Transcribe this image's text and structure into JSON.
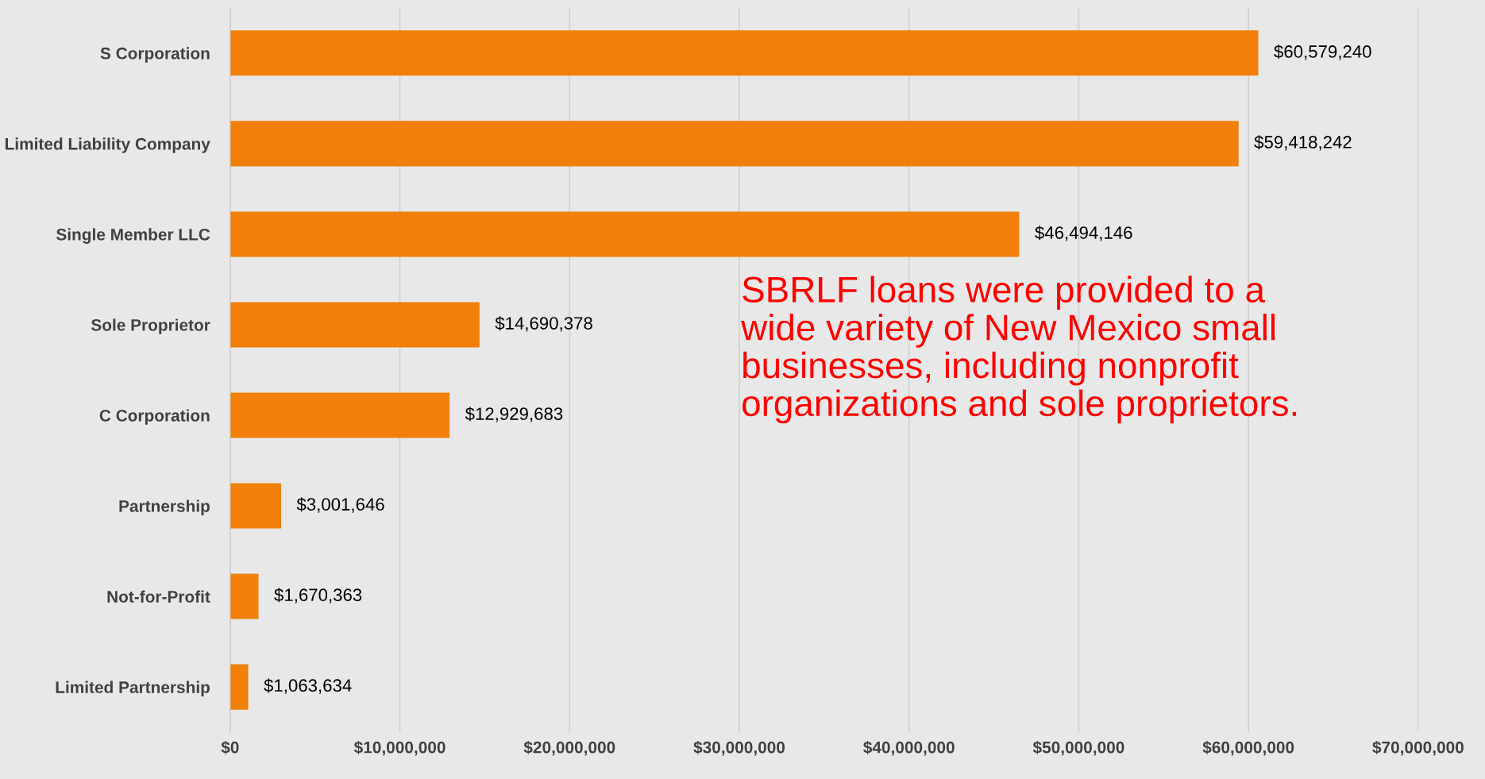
{
  "chart_data": {
    "type": "bar",
    "orientation": "horizontal",
    "categories": [
      "S Corporation",
      "Limited Liability Company",
      "Single Member LLC",
      "Sole Proprietor",
      "C Corporation",
      "Partnership",
      "Not-for-Profit",
      "Limited Partnership"
    ],
    "values": [
      60579240,
      59418242,
      46494146,
      14690378,
      12929683,
      3001646,
      1670363,
      1063634
    ],
    "value_labels": [
      "$60,579,240",
      "$59,418,242",
      "$46,494,146",
      "$14,690,378",
      "$12,929,683",
      "$3,001,646",
      "$1,670,363",
      "$1,063,634"
    ],
    "color": "#f0800a",
    "xlim": [
      0,
      70000000
    ],
    "xticks": [
      {
        "value": 0,
        "label": "$0"
      },
      {
        "value": 10000000,
        "label": "$10,000,000"
      },
      {
        "value": 20000000,
        "label": "$20,000,000"
      },
      {
        "value": 30000000,
        "label": "$30,000,000"
      },
      {
        "value": 40000000,
        "label": "$40,000,000"
      },
      {
        "value": 50000000,
        "label": "$50,000,000"
      },
      {
        "value": 60000000,
        "label": "$60,000,000"
      },
      {
        "value": 70000000,
        "label": "$70,000,000"
      }
    ],
    "grid": "x",
    "annotations": [
      "SBRLF loans were provided to a\nwide variety of New Mexico small\nbusinesses, including nonprofit\norganizations and sole proprietors."
    ]
  }
}
